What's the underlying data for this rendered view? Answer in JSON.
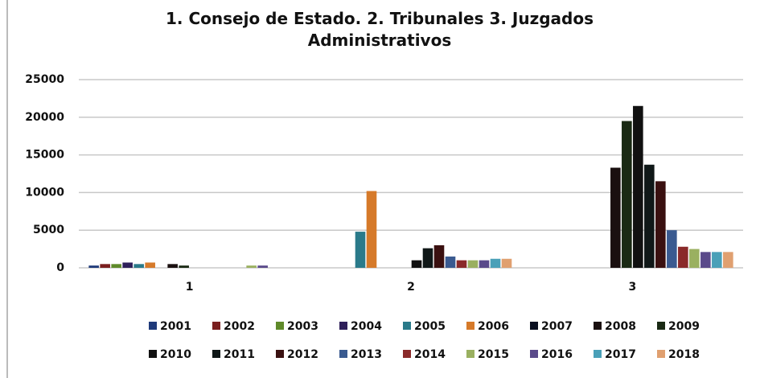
{
  "chart_data": {
    "type": "bar",
    "title": "1. Consejo de Estado.  2. Tribunales  3. Juzgados Administrativos",
    "categories": [
      "1",
      "2",
      "3"
    ],
    "ylim": [
      0,
      25000
    ],
    "yticks": [
      0,
      5000,
      10000,
      15000,
      20000,
      25000
    ],
    "grid": true,
    "legend": "bottom",
    "series": [
      {
        "name": "2001",
        "color": "#1f3a7a",
        "values": [
          300,
          0,
          0
        ]
      },
      {
        "name": "2002",
        "color": "#7a1f1f",
        "values": [
          500,
          0,
          0
        ]
      },
      {
        "name": "2003",
        "color": "#5f8a2a",
        "values": [
          500,
          0,
          0
        ]
      },
      {
        "name": "2004",
        "color": "#2e1f5a",
        "values": [
          700,
          0,
          0
        ]
      },
      {
        "name": "2005",
        "color": "#2a7a8a",
        "values": [
          500,
          4800,
          0
        ]
      },
      {
        "name": "2006",
        "color": "#d67a2a",
        "values": [
          700,
          10200,
          0
        ]
      },
      {
        "name": "2007",
        "color": "#0a0f20",
        "values": [
          0,
          0,
          0
        ]
      },
      {
        "name": "2008",
        "color": "#1a1010",
        "values": [
          500,
          0,
          13300
        ]
      },
      {
        "name": "2009",
        "color": "#1a2a14",
        "values": [
          300,
          0,
          19500
        ]
      },
      {
        "name": "2010",
        "color": "#111111",
        "values": [
          0,
          1000,
          21500
        ]
      },
      {
        "name": "2011",
        "color": "#101818",
        "values": [
          0,
          2600,
          13700
        ]
      },
      {
        "name": "2012",
        "color": "#3a1010",
        "values": [
          0,
          3000,
          11500
        ]
      },
      {
        "name": "2013",
        "color": "#3a5a90",
        "values": [
          0,
          1500,
          5000
        ]
      },
      {
        "name": "2014",
        "color": "#8a2a2a",
        "values": [
          0,
          1000,
          2800
        ]
      },
      {
        "name": "2015",
        "color": "#9ab060",
        "values": [
          300,
          1000,
          2500
        ]
      },
      {
        "name": "2016",
        "color": "#5a4a8a",
        "values": [
          300,
          1000,
          2100
        ]
      },
      {
        "name": "2017",
        "color": "#4aa0b8",
        "values": [
          0,
          1200,
          2100
        ]
      },
      {
        "name": "2018",
        "color": "#e0a070",
        "values": [
          0,
          1200,
          2100
        ]
      }
    ]
  }
}
